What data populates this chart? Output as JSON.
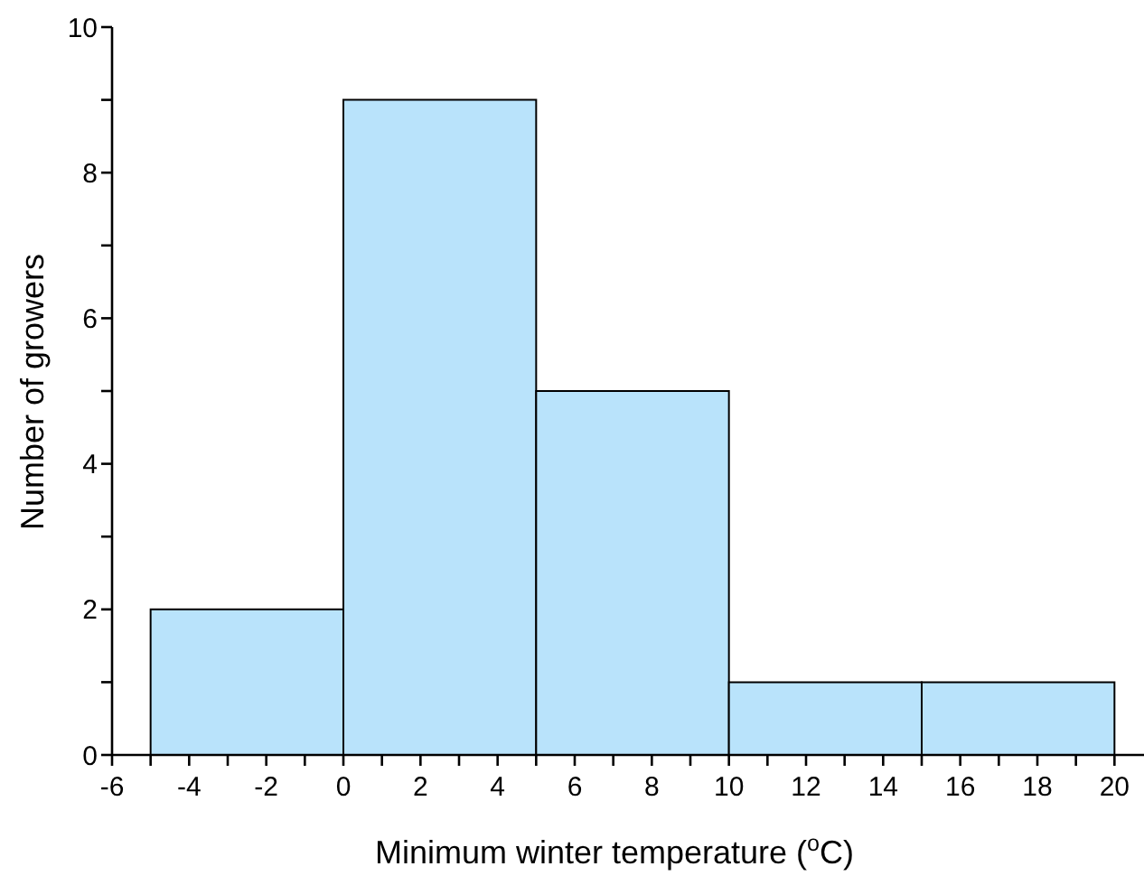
{
  "chart_data": {
    "type": "histogram",
    "xlabel": "Minimum winter temperature ($^{o}$C)",
    "ylabel": "Number of growers",
    "bins": [
      -5,
      0,
      5,
      10,
      15,
      20
    ],
    "values": [
      2,
      9,
      5,
      1,
      1
    ],
    "color": "#b9e3fb",
    "xlim": [
      -6,
      21
    ],
    "xticks": [
      -6,
      {
        "value": -5,
        "label": null
      },
      -4,
      {
        "value": -3,
        "label": null
      },
      -2,
      {
        "value": -1,
        "label": null
      },
      0,
      {
        "value": 1,
        "label": null
      },
      2,
      {
        "value": 3,
        "label": null
      },
      4,
      {
        "value": 5,
        "label": null
      },
      6,
      {
        "value": 7,
        "label": null
      },
      8,
      {
        "value": 9,
        "label": null
      },
      10,
      {
        "value": 11,
        "label": null
      },
      12,
      {
        "value": 13,
        "label": null
      },
      14,
      {
        "value": 15,
        "label": null
      },
      16,
      {
        "value": 17,
        "label": null
      },
      18,
      {
        "value": 19,
        "label": null
      },
      20
    ],
    "ylim": [
      0,
      10
    ],
    "yticks": [
      0,
      {
        "value": 1,
        "label": null
      },
      2,
      {
        "value": 3,
        "label": null
      },
      4,
      {
        "value": 5,
        "label": null
      },
      6,
      {
        "value": 7,
        "label": null
      },
      8,
      {
        "value": 9,
        "label": null
      },
      10
    ],
    "grid": false
  }
}
